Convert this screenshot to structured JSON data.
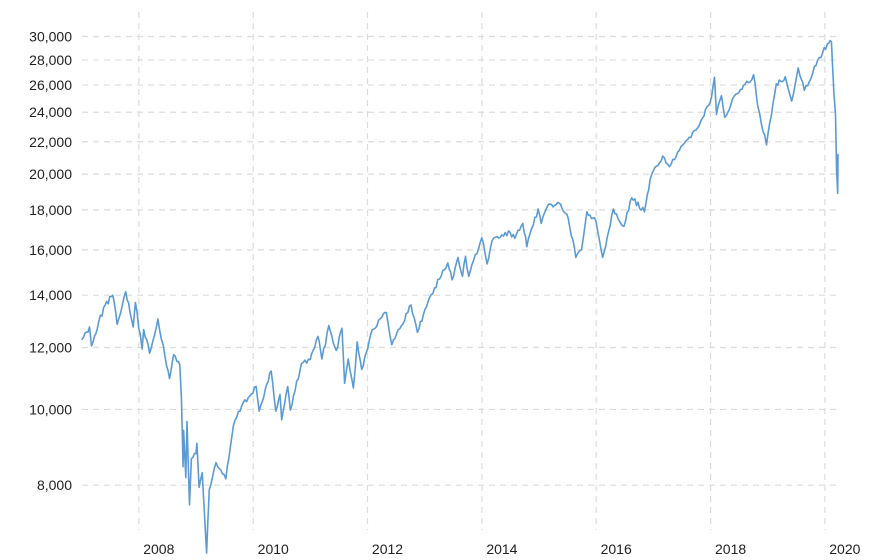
{
  "chart_data": {
    "type": "line",
    "title": "",
    "xlabel": "",
    "ylabel": "",
    "y_scale": "log",
    "ylim": [
      7000,
      30000
    ],
    "xlim": [
      "2007-01-03",
      "2020-03-25"
    ],
    "grid": true,
    "y_ticks": [
      {
        "value": 8000,
        "label": "8,000"
      },
      {
        "value": 10000,
        "label": "10,000"
      },
      {
        "value": 12000,
        "label": "12,000"
      },
      {
        "value": 14000,
        "label": "14,000"
      },
      {
        "value": 16000,
        "label": "16,000"
      },
      {
        "value": 18000,
        "label": "18,000"
      },
      {
        "value": 20000,
        "label": "20,000"
      },
      {
        "value": 22000,
        "label": "22,000"
      },
      {
        "value": 24000,
        "label": "24,000"
      },
      {
        "value": 26000,
        "label": "26,000"
      },
      {
        "value": 28000,
        "label": "28,000"
      },
      {
        "value": 30000,
        "label": "30,000"
      }
    ],
    "x_ticks": [
      {
        "value": "2008-01-01",
        "label": "2008"
      },
      {
        "value": "2010-01-01",
        "label": "2010"
      },
      {
        "value": "2012-01-01",
        "label": "2012"
      },
      {
        "value": "2014-01-01",
        "label": "2014"
      },
      {
        "value": "2016-01-01",
        "label": "2016"
      },
      {
        "value": "2018-01-01",
        "label": "2018"
      },
      {
        "value": "2020-01-01",
        "label": "2020"
      }
    ],
    "series": [
      {
        "color": "#5b9bd5",
        "points": [
          [
            "2007-01-03",
            12300
          ],
          [
            "2007-02-20",
            12750
          ],
          [
            "2007-03-05",
            12050
          ],
          [
            "2007-04-20",
            12950
          ],
          [
            "2007-05-31",
            13600
          ],
          [
            "2007-07-19",
            14000
          ],
          [
            "2007-08-15",
            12850
          ],
          [
            "2007-09-28",
            13900
          ],
          [
            "2007-10-09",
            14150
          ],
          [
            "2007-11-26",
            12750
          ],
          [
            "2007-12-10",
            13700
          ],
          [
            "2008-01-22",
            11950
          ],
          [
            "2008-02-01",
            12650
          ],
          [
            "2008-03-10",
            11800
          ],
          [
            "2008-05-02",
            13050
          ],
          [
            "2008-06-27",
            11350
          ],
          [
            "2008-07-15",
            10950
          ],
          [
            "2008-08-11",
            11750
          ],
          [
            "2008-09-19",
            11400
          ],
          [
            "2008-09-29",
            10350
          ],
          [
            "2008-10-10",
            8450
          ],
          [
            "2008-10-13",
            9400
          ],
          [
            "2008-10-27",
            8180
          ],
          [
            "2008-11-04",
            9650
          ],
          [
            "2008-11-20",
            7550
          ],
          [
            "2008-12-02",
            8650
          ],
          [
            "2008-12-31",
            8780
          ],
          [
            "2009-01-06",
            9050
          ],
          [
            "2009-01-20",
            7950
          ],
          [
            "2009-02-09",
            8300
          ],
          [
            "2009-03-09",
            6550
          ],
          [
            "2009-03-26",
            7900
          ],
          [
            "2009-05-08",
            8550
          ],
          [
            "2009-07-10",
            8150
          ],
          [
            "2009-08-28",
            9550
          ],
          [
            "2009-10-19",
            10100
          ],
          [
            "2009-11-30",
            10350
          ],
          [
            "2010-01-19",
            10700
          ],
          [
            "2010-02-08",
            9950
          ],
          [
            "2010-04-26",
            11200
          ],
          [
            "2010-05-25",
            9950
          ],
          [
            "2010-06-21",
            10450
          ],
          [
            "2010-07-02",
            9700
          ],
          [
            "2010-08-09",
            10700
          ],
          [
            "2010-08-26",
            9980
          ],
          [
            "2010-11-05",
            11450
          ],
          [
            "2010-12-31",
            11580
          ],
          [
            "2011-02-18",
            12400
          ],
          [
            "2011-03-16",
            11600
          ],
          [
            "2011-04-29",
            12800
          ],
          [
            "2011-06-15",
            11900
          ],
          [
            "2011-07-22",
            12700
          ],
          [
            "2011-08-08",
            10800
          ],
          [
            "2011-08-31",
            11600
          ],
          [
            "2011-10-03",
            10650
          ],
          [
            "2011-10-27",
            12200
          ],
          [
            "2011-11-25",
            11250
          ],
          [
            "2012-01-31",
            12650
          ],
          [
            "2012-05-01",
            13300
          ],
          [
            "2012-06-04",
            12100
          ],
          [
            "2012-10-05",
            13600
          ],
          [
            "2012-11-15",
            12550
          ],
          [
            "2013-01-31",
            13900
          ],
          [
            "2013-05-28",
            15400
          ],
          [
            "2013-06-24",
            14650
          ],
          [
            "2013-08-01",
            15650
          ],
          [
            "2013-08-30",
            14800
          ],
          [
            "2013-09-18",
            15700
          ],
          [
            "2013-10-09",
            14800
          ],
          [
            "2013-12-31",
            16580
          ],
          [
            "2014-02-03",
            15350
          ],
          [
            "2014-03-07",
            16450
          ],
          [
            "2014-06-30",
            16850
          ],
          [
            "2014-07-31",
            16550
          ],
          [
            "2014-09-19",
            17300
          ],
          [
            "2014-10-15",
            16150
          ],
          [
            "2014-12-26",
            18050
          ],
          [
            "2015-01-15",
            17300
          ],
          [
            "2015-03-02",
            18300
          ],
          [
            "2015-05-19",
            18300
          ],
          [
            "2015-07-08",
            17500
          ],
          [
            "2015-08-24",
            15650
          ],
          [
            "2015-09-29",
            16000
          ],
          [
            "2015-11-03",
            17900
          ],
          [
            "2015-12-31",
            17400
          ],
          [
            "2016-02-11",
            15650
          ],
          [
            "2016-04-20",
            18050
          ],
          [
            "2016-06-27",
            17150
          ],
          [
            "2016-08-15",
            18650
          ],
          [
            "2016-11-04",
            17900
          ],
          [
            "2016-12-20",
            19970
          ],
          [
            "2017-03-01",
            21100
          ],
          [
            "2017-04-13",
            20450
          ],
          [
            "2017-08-07",
            22150
          ],
          [
            "2017-10-31",
            23400
          ],
          [
            "2017-12-29",
            24700
          ],
          [
            "2018-01-26",
            26600
          ],
          [
            "2018-02-08",
            23850
          ],
          [
            "2018-03-12",
            25200
          ],
          [
            "2018-04-02",
            23650
          ],
          [
            "2018-06-11",
            25300
          ],
          [
            "2018-08-29",
            26200
          ],
          [
            "2018-10-03",
            26800
          ],
          [
            "2018-10-29",
            24450
          ],
          [
            "2018-12-24",
            21800
          ],
          [
            "2019-02-25",
            26100
          ],
          [
            "2019-04-23",
            26650
          ],
          [
            "2019-06-03",
            24800
          ],
          [
            "2019-07-15",
            27350
          ],
          [
            "2019-08-23",
            25600
          ],
          [
            "2019-11-27",
            28200
          ],
          [
            "2020-01-17",
            29350
          ],
          [
            "2020-02-12",
            29550
          ],
          [
            "2020-02-28",
            25400
          ],
          [
            "2020-03-09",
            23850
          ],
          [
            "2020-03-16",
            20200
          ],
          [
            "2020-03-23",
            18900
          ],
          [
            "2020-03-25",
            21200
          ]
        ]
      }
    ]
  }
}
